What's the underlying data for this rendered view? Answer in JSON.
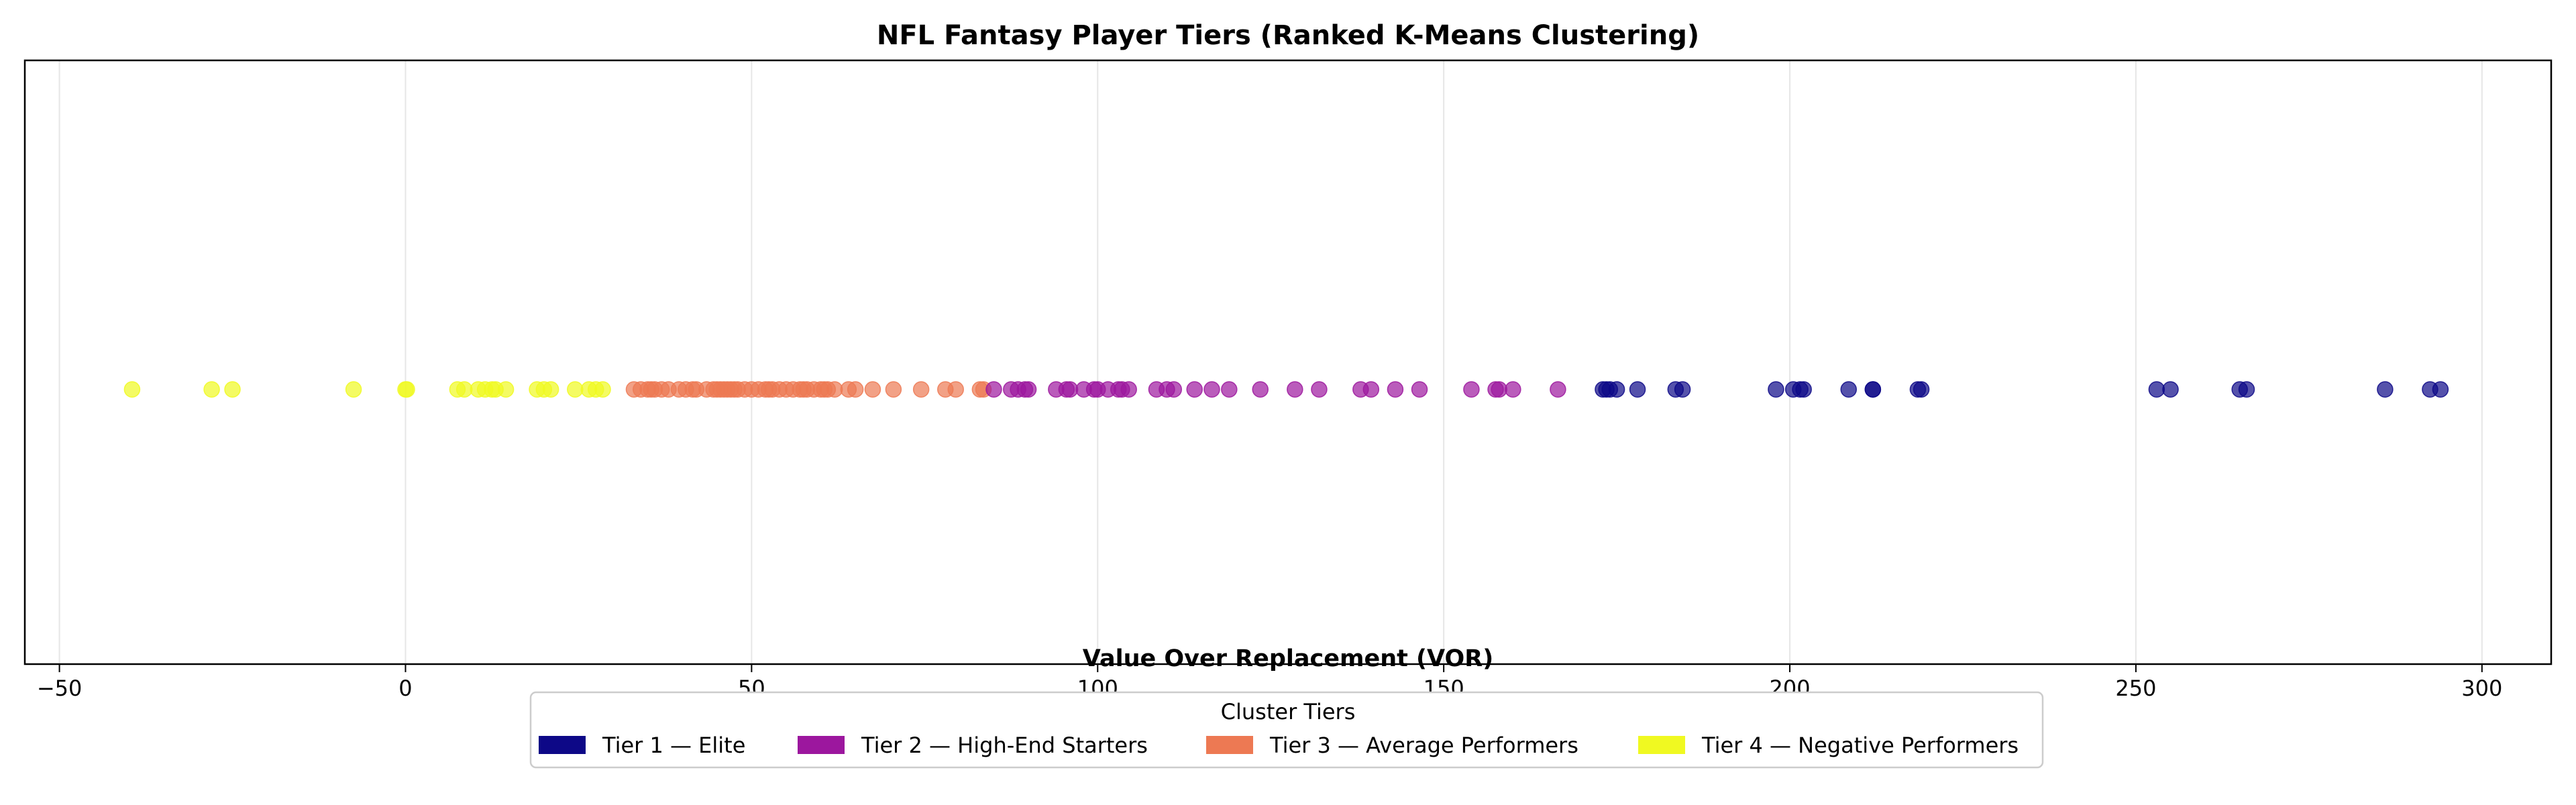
{
  "chart_data": {
    "type": "scatter",
    "title": "NFL Fantasy Player Tiers (Ranked K-Means Clustering)",
    "xlabel": "Value Over Replacement (VOR)",
    "ylabel": "",
    "xlim": [
      -55,
      310
    ],
    "xticks": [
      -50,
      0,
      50,
      100,
      150,
      200,
      250,
      300
    ],
    "xtick_labels": [
      "−50",
      "0",
      "50",
      "100",
      "150",
      "200",
      "250",
      "300"
    ],
    "grid": "vertical",
    "legend": {
      "title": "Cluster Tiers",
      "placement": "bottom-center",
      "entries": [
        {
          "label": "Tier 1 — Elite",
          "color": "#0d0887"
        },
        {
          "label": "Tier 2 — High-End Starters",
          "color": "#9c179e"
        },
        {
          "label": "Tier 3 — Average Performers",
          "color": "#ed7953"
        },
        {
          "label": "Tier 4 — Negative Performers",
          "color": "#f0f921"
        }
      ]
    },
    "series": [
      {
        "name": "Tier 1 — Elite",
        "color": "#0d0887",
        "x": [
          173,
          173.5,
          174,
          175,
          178,
          183.5,
          184.5,
          198,
          200.5,
          201.5,
          202,
          208.5,
          212,
          212,
          218.5,
          219,
          253,
          255,
          265,
          266,
          286,
          292.5,
          294
        ]
      },
      {
        "name": "Tier 2 — High-End Starters",
        "color": "#9c179e",
        "x": [
          85,
          87.5,
          88.5,
          89.5,
          90,
          94,
          95.5,
          96,
          98,
          99.5,
          100,
          101.5,
          103,
          103.5,
          104.5,
          108.5,
          110,
          111,
          114,
          116.5,
          119,
          123.5,
          128.5,
          132,
          138,
          139.5,
          143,
          146.5,
          154,
          157.5,
          158,
          160,
          166.5
        ]
      },
      {
        "name": "Tier 3 — Average Performers",
        "color": "#ed7953",
        "x": [
          33,
          34,
          35,
          35.5,
          36,
          37,
          38,
          39.5,
          40.5,
          41.5,
          42,
          43.5,
          44.5,
          45,
          45.5,
          46,
          46.5,
          47,
          47.5,
          48,
          49,
          50,
          51,
          52,
          52.5,
          53,
          54,
          55,
          56,
          57,
          57.5,
          58,
          59,
          60,
          60.5,
          61,
          62,
          64,
          65,
          67.5,
          70.5,
          74.5,
          78,
          79.5,
          83,
          83.5
        ]
      },
      {
        "name": "Tier 4 — Negative Performers",
        "color": "#f0f921",
        "x": [
          -39.5,
          -28,
          -25,
          -7.5,
          0,
          0.2,
          7.5,
          8.5,
          10.5,
          11.5,
          12.5,
          13,
          14.5,
          19,
          20,
          21,
          24.5,
          26.5,
          27.5,
          28.5
        ]
      }
    ]
  }
}
